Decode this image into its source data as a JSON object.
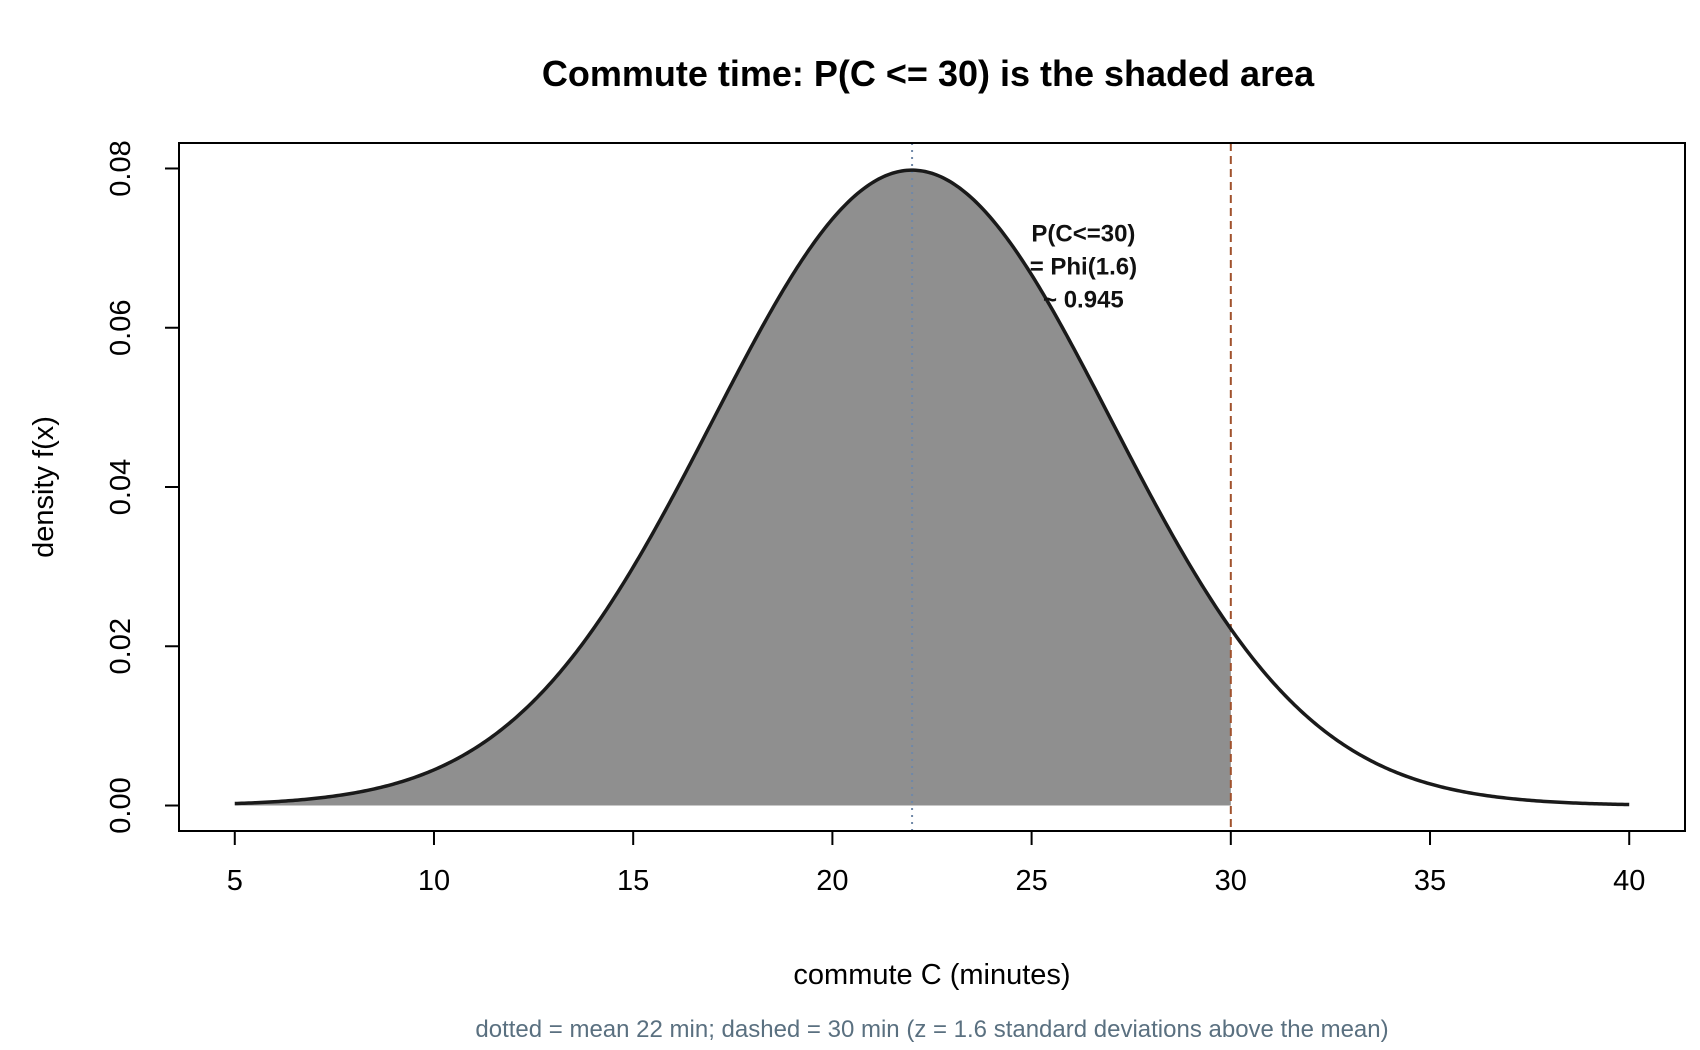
{
  "chart_data": {
    "type": "area",
    "title": "Commute time: P(C <= 30) is the shaded area",
    "xlabel": "commute C (minutes)",
    "ylabel": "density f(x)",
    "xlim": [
      5,
      40
    ],
    "ylim": [
      0,
      0.08
    ],
    "x_ticks": [
      5,
      10,
      15,
      20,
      25,
      30,
      35,
      40
    ],
    "x_tick_labels": [
      "5",
      "10",
      "15",
      "20",
      "25",
      "30",
      "35",
      "40"
    ],
    "y_ticks": [
      0,
      0.02,
      0.04,
      0.06,
      0.08
    ],
    "y_tick_labels": [
      "0.00",
      "0.02",
      "0.04",
      "0.06",
      "0.08"
    ],
    "distribution": {
      "family": "normal",
      "mean": 22,
      "sd": 5
    },
    "shaded_region": {
      "from": 5,
      "to": 30,
      "probability": 0.945
    },
    "reference_lines": [
      {
        "x": 22,
        "style": "dotted",
        "color": "#6f88a8"
      },
      {
        "x": 30,
        "style": "dashed",
        "color": "#a0522d"
      }
    ],
    "annotation": {
      "lines": [
        "P(C<=30)",
        "= Phi(1.6)",
        "~ 0.945"
      ],
      "x": 26.3,
      "y": 0.0708
    },
    "caption": "dotted = mean 22 min; dashed = 30 min (z = 1.6 standard deviations above the mean)",
    "colors": {
      "fill": "#8f8f8f",
      "curve": "#1a1a1a",
      "mean_line": "#6f88a8",
      "threshold_line": "#a0522d",
      "caption": "#5a7080"
    },
    "grid": false,
    "legend": "none"
  }
}
